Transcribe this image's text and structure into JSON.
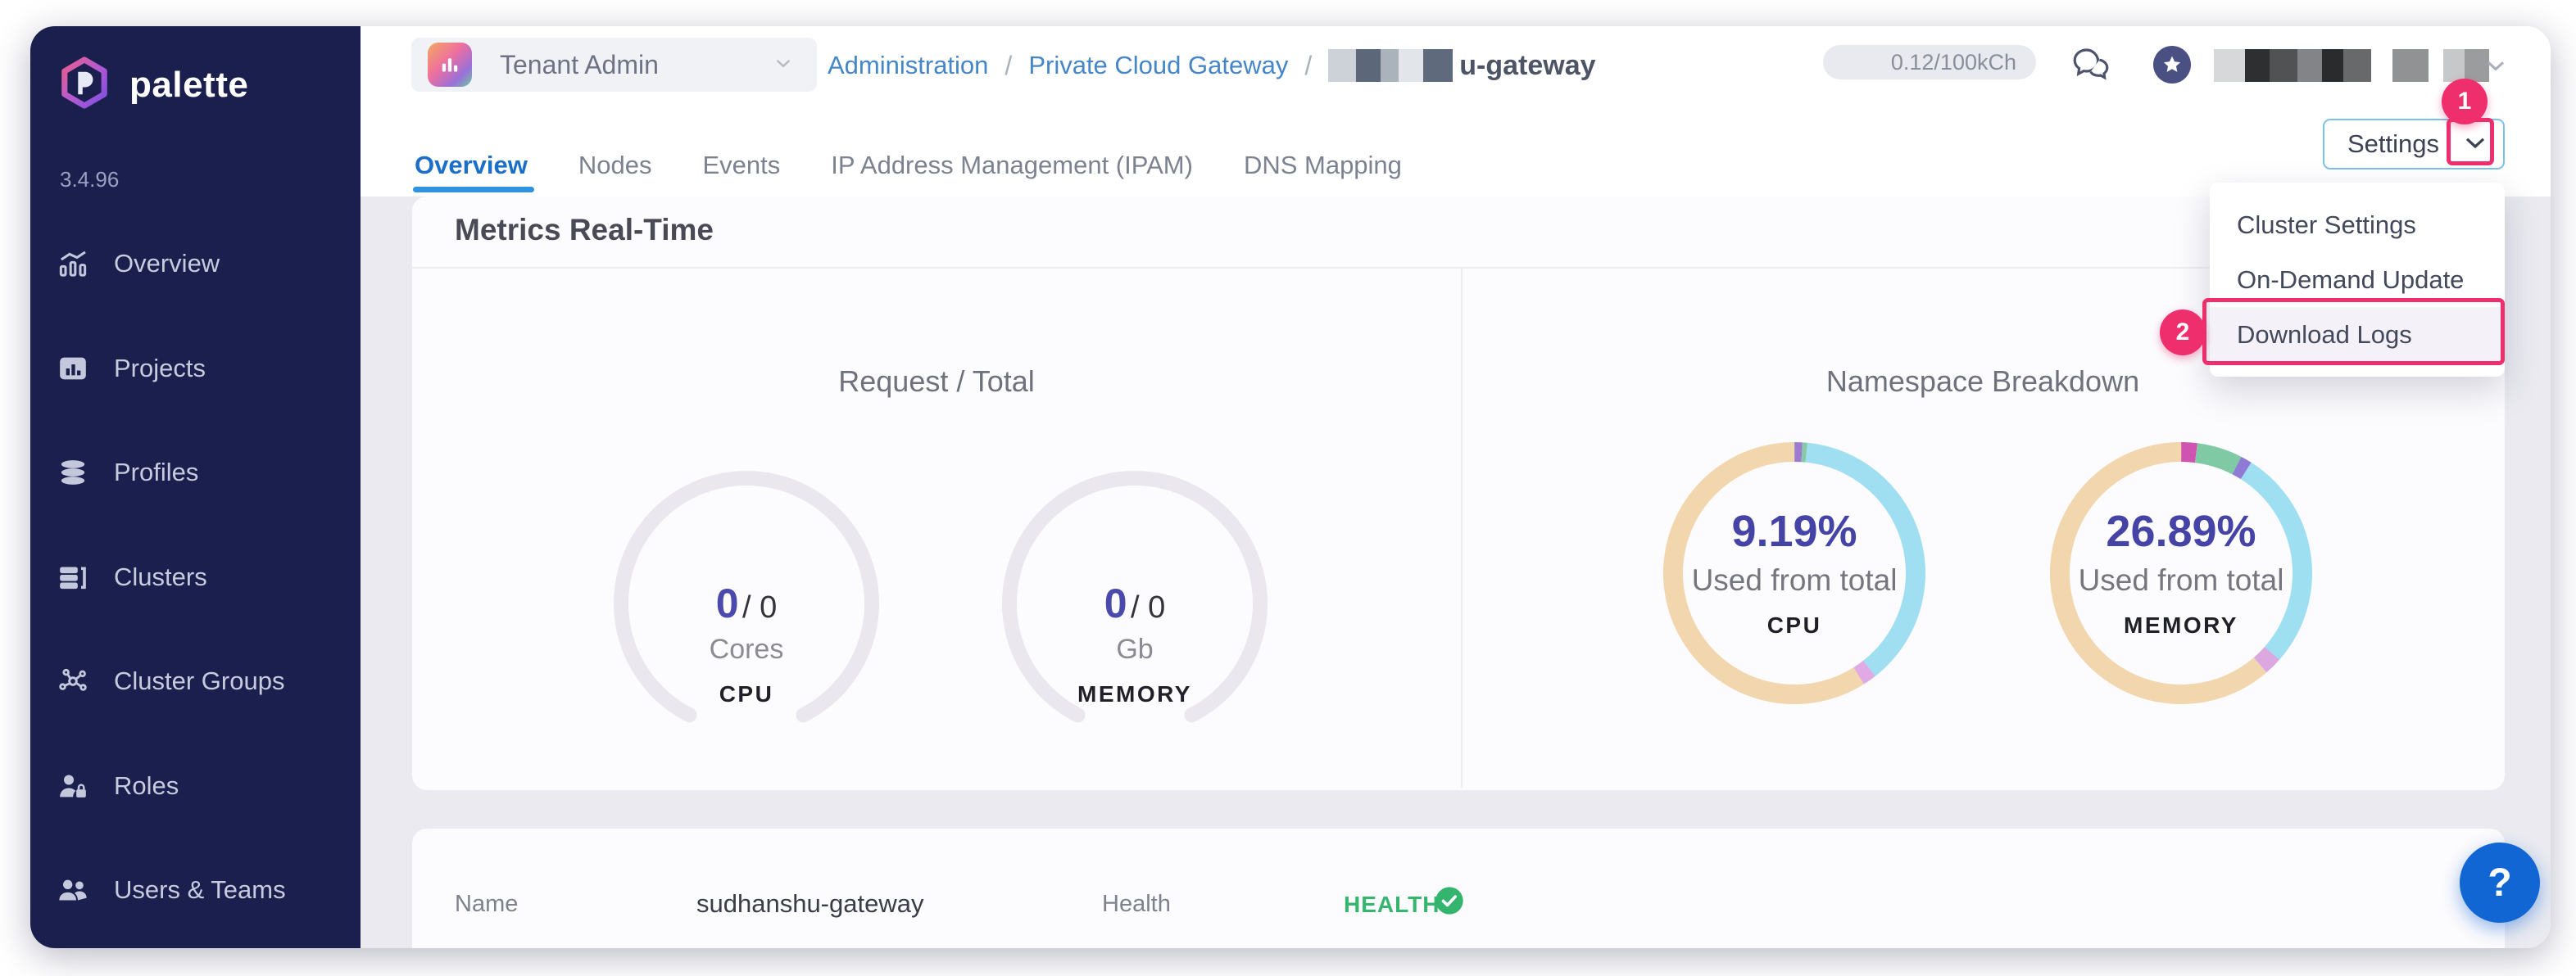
{
  "brand": {
    "name": "palette",
    "version": "3.4.96"
  },
  "sidebar": {
    "items": [
      {
        "label": "Overview"
      },
      {
        "label": "Projects"
      },
      {
        "label": "Profiles"
      },
      {
        "label": "Clusters"
      },
      {
        "label": "Cluster Groups"
      },
      {
        "label": "Roles"
      },
      {
        "label": "Users & Teams"
      }
    ]
  },
  "topbar": {
    "scope": {
      "label": "Tenant Admin"
    },
    "breadcrumb": {
      "link1": "Administration",
      "separator": "/",
      "link2": "Private Cloud Gateway",
      "current_suffix": "u-gateway"
    },
    "usage": "0.12/100kCh"
  },
  "tabs": {
    "items": [
      {
        "label": "Overview"
      },
      {
        "label": "Nodes"
      },
      {
        "label": "Events"
      },
      {
        "label": "IP Address Management (IPAM)"
      },
      {
        "label": "DNS Mapping"
      }
    ],
    "active": "Overview"
  },
  "settings": {
    "label": "Settings",
    "menu": [
      {
        "label": "Cluster Settings"
      },
      {
        "label": "On-Demand Update"
      },
      {
        "label": "Download Logs"
      }
    ]
  },
  "annotations": {
    "step1": "1",
    "step2": "2"
  },
  "metrics": {
    "heading": "Metrics Real-Time",
    "request_total": {
      "title": "Request / Total",
      "gauges": [
        {
          "used": "0",
          "divider": "/",
          "total": "0",
          "unit": "Cores",
          "label": "CPU"
        },
        {
          "used": "0",
          "divider": "/",
          "total": "0",
          "unit": "Gb",
          "label": "MEMORY"
        }
      ]
    },
    "namespace": {
      "title": "Namespace Breakdown",
      "donuts": [
        {
          "percent": "9.19%",
          "caption": "Used from total",
          "label": "CPU",
          "segments": [
            {
              "color": "#9b7cd0",
              "value": 1.0
            },
            {
              "color": "#85c9a6",
              "value": 0.6
            },
            {
              "color": "#a0dff2",
              "value": 37.8
            },
            {
              "color": "#e0abe4",
              "value": 1.7
            },
            {
              "color": "#f2d6ae",
              "value": 58.9
            }
          ]
        },
        {
          "percent": "26.89%",
          "caption": "Used from total",
          "label": "MEMORY",
          "segments": [
            {
              "color": "#cf53b0",
              "value": 2.0
            },
            {
              "color": "#7fc9a4",
              "value": 5.6
            },
            {
              "color": "#8f7ad6",
              "value": 1.4
            },
            {
              "color": "#9fdff2",
              "value": 27.5
            },
            {
              "color": "#dca8e0",
              "value": 2.2
            },
            {
              "color": "#f2d6ae",
              "value": 61.3
            }
          ]
        }
      ]
    }
  },
  "details": {
    "name_label": "Name",
    "name_value": "sudhanshu-gateway",
    "health_label": "Health",
    "health_value": "HEALTHY"
  },
  "help": {
    "label": "?"
  },
  "redactions": {
    "breadcrumb": [
      {
        "w": 34,
        "c": "#ccd2d8"
      },
      {
        "w": 30,
        "c": "#5c6779"
      },
      {
        "w": 22,
        "c": "#aab2bc"
      },
      {
        "w": 30,
        "c": "#e2e5e9"
      },
      {
        "w": 36,
        "c": "#5f6a7c"
      }
    ],
    "user": [
      {
        "w": 38,
        "c": "#d6d8da"
      },
      {
        "w": 30,
        "c": "#2e2f31"
      },
      {
        "w": 34,
        "c": "#515254"
      },
      {
        "w": 30,
        "c": "#828487"
      },
      {
        "w": 26,
        "c": "#2a2b2d"
      },
      {
        "w": 34,
        "c": "#67696b"
      },
      {
        "w": 44,
        "c": "#909294",
        "ml": 26
      },
      {
        "w": 26,
        "c": "#c6c8ca",
        "ml": 18
      },
      {
        "w": 30,
        "c": "#9a9c9e"
      }
    ]
  },
  "chart_data": [
    {
      "type": "gauge",
      "title": "Request / Total - CPU",
      "value": 0,
      "total": 0,
      "unit": "Cores"
    },
    {
      "type": "gauge",
      "title": "Request / Total - MEMORY",
      "value": 0,
      "total": 0,
      "unit": "Gb"
    },
    {
      "type": "pie",
      "title": "Namespace Breakdown - CPU",
      "center_value": "9.19%",
      "caption": "Used from total",
      "values_pct": [
        1.0,
        0.6,
        37.8,
        1.7,
        58.9
      ]
    },
    {
      "type": "pie",
      "title": "Namespace Breakdown - MEMORY",
      "center_value": "26.89%",
      "caption": "Used from total",
      "values_pct": [
        2.0,
        5.6,
        1.4,
        27.5,
        2.2,
        61.3
      ]
    }
  ]
}
